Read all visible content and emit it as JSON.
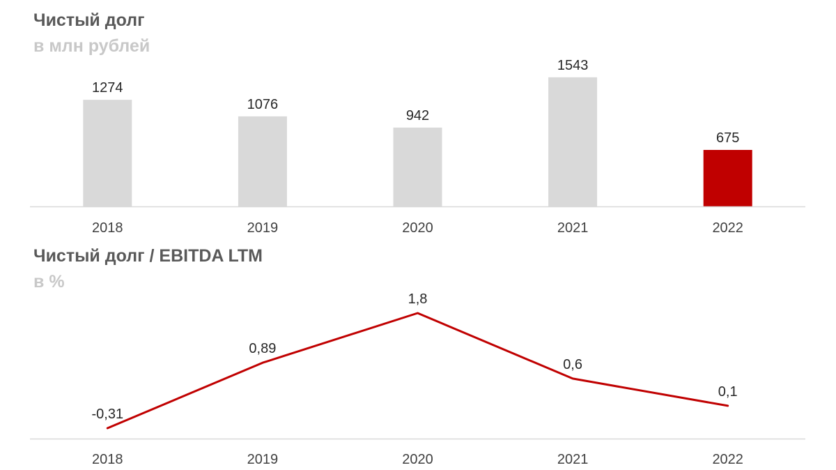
{
  "chart_data": [
    {
      "type": "bar",
      "title": "Чистый долг",
      "subtitle": "в млн рублей",
      "categories": [
        "2018",
        "2019",
        "2020",
        "2021",
        "2022"
      ],
      "values": [
        1274,
        1076,
        942,
        1543,
        675
      ],
      "value_labels": [
        "1274",
        "1076",
        "942",
        "1543",
        "675"
      ],
      "colors": [
        "#d9d9d9",
        "#d9d9d9",
        "#d9d9d9",
        "#d9d9d9",
        "#c00000"
      ],
      "ylim": [
        0,
        1800
      ],
      "grid": false,
      "legend": "none"
    },
    {
      "type": "line",
      "title": "Чистый долг / EBITDA LTM",
      "subtitle": "в %",
      "categories": [
        "2018",
        "2019",
        "2020",
        "2021",
        "2022"
      ],
      "values": [
        -0.31,
        0.89,
        1.8,
        0.6,
        0.1
      ],
      "value_labels": [
        "-0,31",
        "0,89",
        "1,8",
        "0,6",
        "0,1"
      ],
      "line_color": "#c00000",
      "ylim": [
        -0.5,
        2.2
      ],
      "grid": false,
      "legend": "none"
    }
  ]
}
